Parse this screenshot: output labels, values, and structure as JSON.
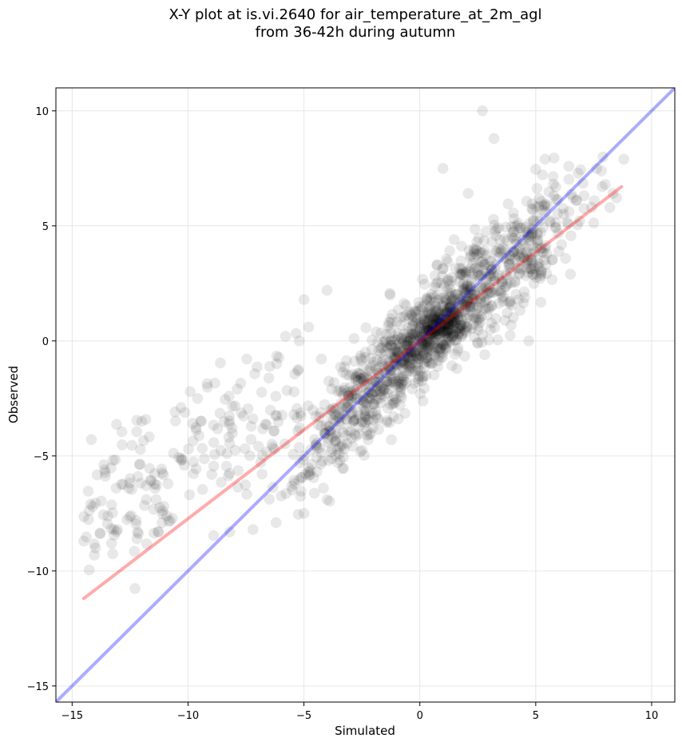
{
  "chart_data": {
    "type": "scatter",
    "title": "X-Y plot at is.vi.2640 for air_temperature_at_2m_agl",
    "subtitle": "from 36-42h during autumn",
    "xlabel": "Simulated",
    "ylabel": "Observed",
    "xlim": [
      -15.7,
      11
    ],
    "ylim": [
      -15.7,
      11
    ],
    "xticks": [
      -15,
      -10,
      -5,
      0,
      5,
      10
    ],
    "yticks": [
      -15,
      -10,
      -5,
      0,
      5,
      10
    ],
    "xtick_labels": [
      "−15",
      "−10",
      "−5",
      "0",
      "5",
      "10"
    ],
    "ytick_labels": [
      "−15",
      "−10",
      "−5",
      "0",
      "5",
      "10"
    ],
    "grid": true,
    "point_color": "#000000",
    "point_alpha": 0.09,
    "lines": [
      {
        "kind": "one-to-one",
        "color": "#0000ff",
        "x": [
          -15.7,
          11
        ],
        "y": [
          -15.7,
          11
        ]
      },
      {
        "kind": "regression",
        "color": "#ff0000",
        "x": [
          -14.5,
          8.7
        ],
        "y": [
          -11.2,
          6.7
        ]
      }
    ],
    "highlighted_points": [
      [
        2.7,
        10.0
      ],
      [
        3.2,
        8.8
      ],
      [
        1.0,
        7.5
      ],
      [
        -4.0,
        2.2
      ],
      [
        -5.0,
        1.8
      ],
      [
        -4.8,
        0.6
      ],
      [
        -5.2,
        0.0
      ],
      [
        -5.8,
        0.2
      ],
      [
        -14.5,
        -8.7
      ],
      [
        -14.2,
        -7.1
      ],
      [
        -13.3,
        -8.8
      ],
      [
        -13.2,
        -8.2
      ],
      [
        -12.2,
        -8.6
      ],
      [
        -11.8,
        -6.9
      ],
      [
        -12.0,
        -3.5
      ],
      [
        -10.3,
        -2.9
      ],
      [
        -8.2,
        -8.3
      ],
      [
        -7.2,
        -8.2
      ],
      [
        -6.2,
        -7.9
      ],
      [
        -5.0,
        -7.5
      ],
      [
        -4.0,
        -6.9
      ],
      [
        2.8,
        -0.6
      ],
      [
        4.7,
        0.0
      ],
      [
        6.5,
        2.9
      ],
      [
        8.0,
        6.8
      ],
      [
        8.2,
        5.8
      ],
      [
        8.8,
        7.9
      ],
      [
        7.9,
        8.0
      ],
      [
        5.4,
        7.9
      ],
      [
        -13.6,
        -5.6
      ],
      [
        -13.1,
        -6.4
      ]
    ]
  }
}
